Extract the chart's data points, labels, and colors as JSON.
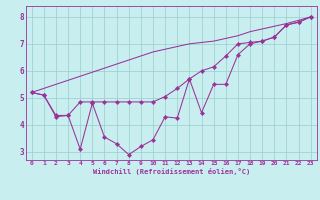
{
  "xlabel": "Windchill (Refroidissement éolien,°C)",
  "background_color": "#c8eef0",
  "line_color": "#993399",
  "grid_color": "#99cccc",
  "x_hours": [
    0,
    1,
    2,
    3,
    4,
    5,
    6,
    7,
    8,
    9,
    10,
    11,
    12,
    13,
    14,
    15,
    16,
    17,
    18,
    19,
    20,
    21,
    22,
    23
  ],
  "line_windchill": [
    5.2,
    5.1,
    4.3,
    4.35,
    3.1,
    4.8,
    3.55,
    3.3,
    2.9,
    3.2,
    3.45,
    4.3,
    4.25,
    5.7,
    4.45,
    5.5,
    5.5,
    6.6,
    7.0,
    7.1,
    7.25,
    7.7,
    7.8,
    8.0
  ],
  "line_temp": [
    5.2,
    5.1,
    4.35,
    4.35,
    4.85,
    4.85,
    4.85,
    4.85,
    4.85,
    4.85,
    4.85,
    5.05,
    5.35,
    5.7,
    6.0,
    6.15,
    6.55,
    7.0,
    7.05,
    7.1,
    7.25,
    7.7,
    7.8,
    8.0
  ],
  "line_straight": [
    5.2,
    5.35,
    5.5,
    5.65,
    5.8,
    5.95,
    6.1,
    6.25,
    6.4,
    6.55,
    6.7,
    6.8,
    6.9,
    7.0,
    7.05,
    7.1,
    7.2,
    7.3,
    7.45,
    7.55,
    7.65,
    7.75,
    7.87,
    8.0
  ],
  "ylim": [
    2.7,
    8.4
  ],
  "xlim": [
    -0.5,
    23.5
  ],
  "yticks": [
    3,
    4,
    5,
    6,
    7,
    8
  ],
  "xticks": [
    0,
    1,
    2,
    3,
    4,
    5,
    6,
    7,
    8,
    9,
    10,
    11,
    12,
    13,
    14,
    15,
    16,
    17,
    18,
    19,
    20,
    21,
    22,
    23
  ],
  "font_color": "#993399",
  "fontname": "monospace",
  "marker_size": 2.2,
  "lw": 0.75
}
